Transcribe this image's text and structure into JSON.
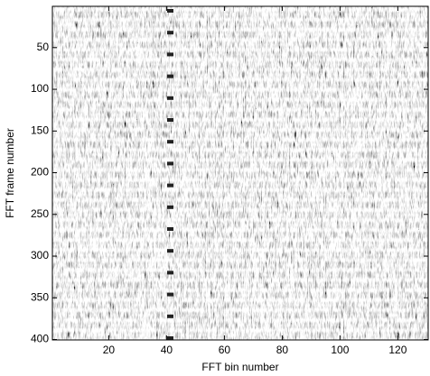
{
  "chart_data": {
    "type": "heatmap",
    "x_label": "FFT bin number",
    "y_label": "FFT frame number",
    "xlim": [
      0.5,
      130.5
    ],
    "ylim": [
      0.5,
      400.5
    ],
    "y_reversed": true,
    "xticks": [
      20,
      40,
      60,
      80,
      100,
      120
    ],
    "yticks": [
      50,
      100,
      150,
      200,
      250,
      300,
      350,
      400
    ],
    "colormap": "gray"
  }
}
